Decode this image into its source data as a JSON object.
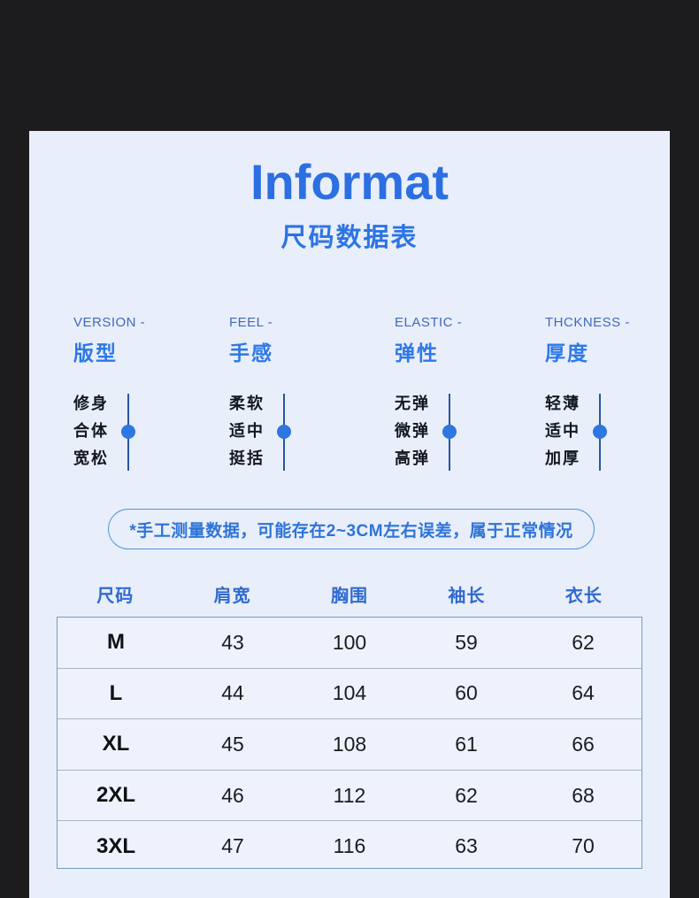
{
  "page": {
    "bg_color": "#1c1c1e",
    "card_bg": "#e9eefb"
  },
  "header": {
    "title": "Informat",
    "subtitle": "尺码数据表"
  },
  "attributes": [
    {
      "label_en": "VERSION -",
      "label_zh": "版型",
      "options": [
        "修身",
        "合体",
        "宽松"
      ],
      "selected_index": 1
    },
    {
      "label_en": "FEEL -",
      "label_zh": "手感",
      "options": [
        "柔软",
        "适中",
        "挺括"
      ],
      "selected_index": 1
    },
    {
      "label_en": "ELASTIC -",
      "label_zh": "弹性",
      "options": [
        "无弹",
        "微弹",
        "高弹"
      ],
      "selected_index": 1
    },
    {
      "label_en": "THCKNESS -",
      "label_zh": "厚度",
      "options": [
        "轻薄",
        "适中",
        "加厚"
      ],
      "selected_index": 1
    }
  ],
  "note": "*手工测量数据，可能存在2~3CM左右误差，属于正常情况",
  "size_table": {
    "headers": [
      "尺码",
      "肩宽",
      "胸围",
      "袖长",
      "衣长"
    ],
    "rows": [
      [
        "M",
        "43",
        "100",
        "59",
        "62"
      ],
      [
        "L",
        "44",
        "104",
        "60",
        "64"
      ],
      [
        "XL",
        "45",
        "108",
        "61",
        "66"
      ],
      [
        "2XL",
        "46",
        "112",
        "62",
        "68"
      ],
      [
        "3XL",
        "47",
        "116",
        "63",
        "70"
      ]
    ]
  },
  "colors": {
    "accent_blue": "#2c6fe2",
    "dot_blue": "#2e76e0",
    "track_blue": "#2b55a0",
    "option_text": "#14171e",
    "table_border": "#6f9fc0"
  }
}
